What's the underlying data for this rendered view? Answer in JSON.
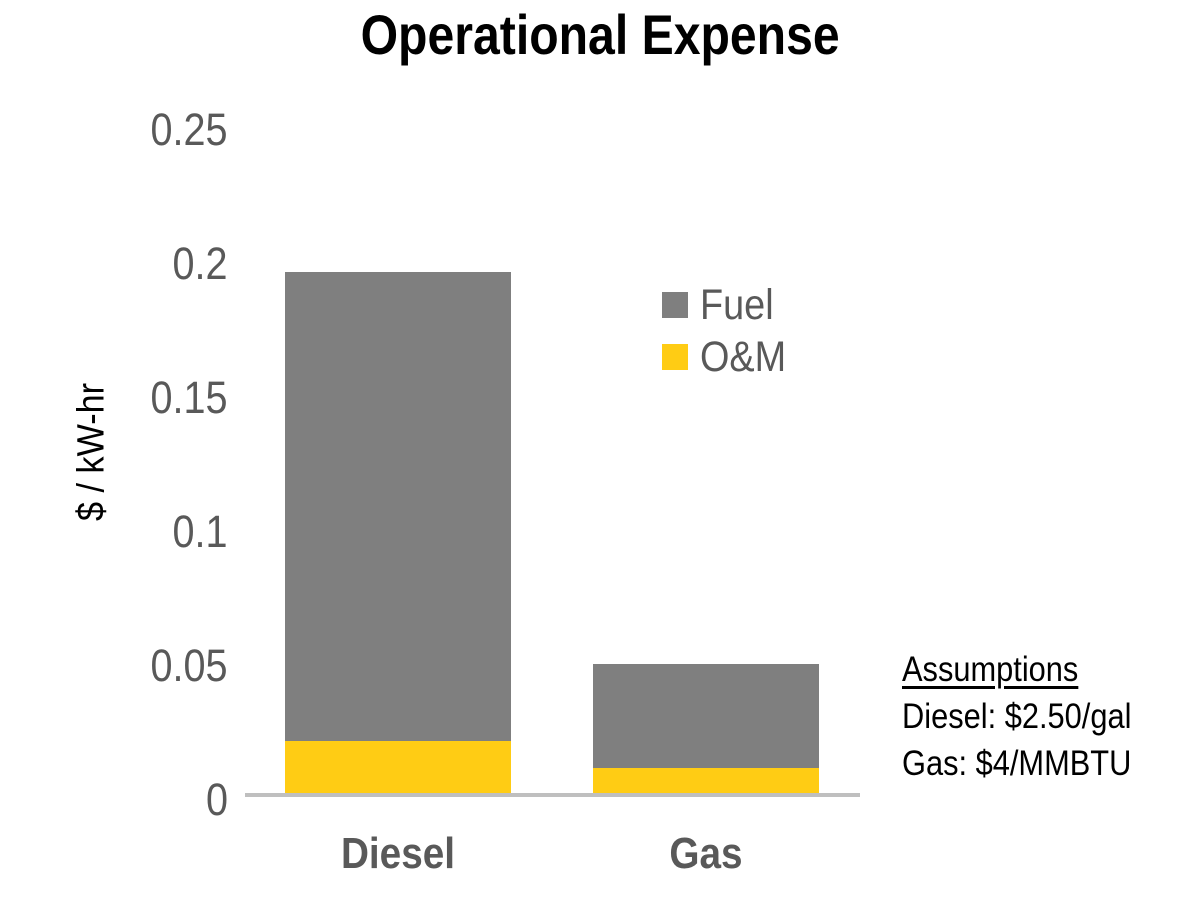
{
  "chart_data": {
    "type": "bar",
    "stacked": true,
    "title": "Operational Expense",
    "xlabel": "",
    "ylabel": "$ / kW-hr",
    "ylim": [
      0,
      0.25
    ],
    "yticks": [
      "0",
      "0.05",
      "0.1",
      "0.15",
      "0.2",
      "0.25"
    ],
    "categories": [
      "Diesel",
      "Gas"
    ],
    "series": [
      {
        "name": "O&M",
        "color": "#FFCC14",
        "values": [
          0.02,
          0.01
        ]
      },
      {
        "name": "Fuel",
        "color": "#7F7F7F",
        "values": [
          0.175,
          0.039
        ]
      }
    ],
    "totals": [
      0.195,
      0.049
    ],
    "legend": {
      "position": "inside-top-right",
      "entries": [
        "Fuel",
        "O&M"
      ]
    },
    "grid": false,
    "annotations": {
      "heading": "Assumptions",
      "lines": [
        "Diesel: $2.50/gal",
        "Gas: $4/MMBTU"
      ]
    }
  },
  "colors": {
    "fuel": "#7F7F7F",
    "om": "#FFCC14",
    "tick_text": "#595959",
    "axis_line": "#BFBFBF"
  }
}
